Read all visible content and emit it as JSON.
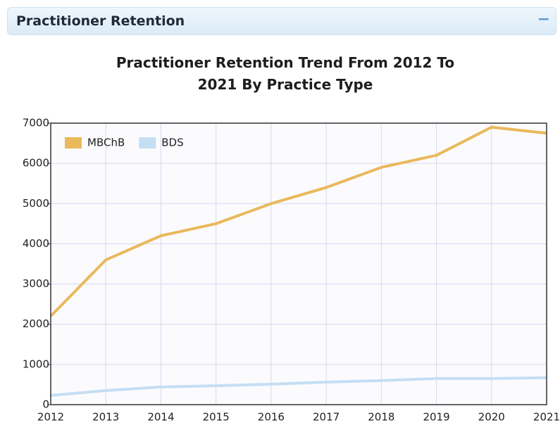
{
  "header": {
    "title": "Practitioner Retention",
    "collapse_icon": "−"
  },
  "chart_data": {
    "type": "line",
    "title": "Practitioner Retention Trend From 2012 To 2021 By Practice Type",
    "categories": [
      "2012",
      "2013",
      "2014",
      "2015",
      "2016",
      "2017",
      "2018",
      "2019",
      "2020",
      "2021"
    ],
    "series": [
      {
        "name": "MBChB",
        "color": "#e9b95c",
        "values": [
          2200,
          3600,
          4200,
          4500,
          5000,
          5400,
          5900,
          6200,
          6900,
          6750
        ]
      },
      {
        "name": "BDS",
        "color": "#c4def4",
        "values": [
          230,
          350,
          440,
          470,
          510,
          560,
          600,
          650,
          650,
          670
        ]
      }
    ],
    "ylim": [
      0,
      7000
    ],
    "yticks": [
      0,
      1000,
      2000,
      3000,
      4000,
      5000,
      6000,
      7000
    ],
    "grid": true,
    "legend": "top-left"
  }
}
